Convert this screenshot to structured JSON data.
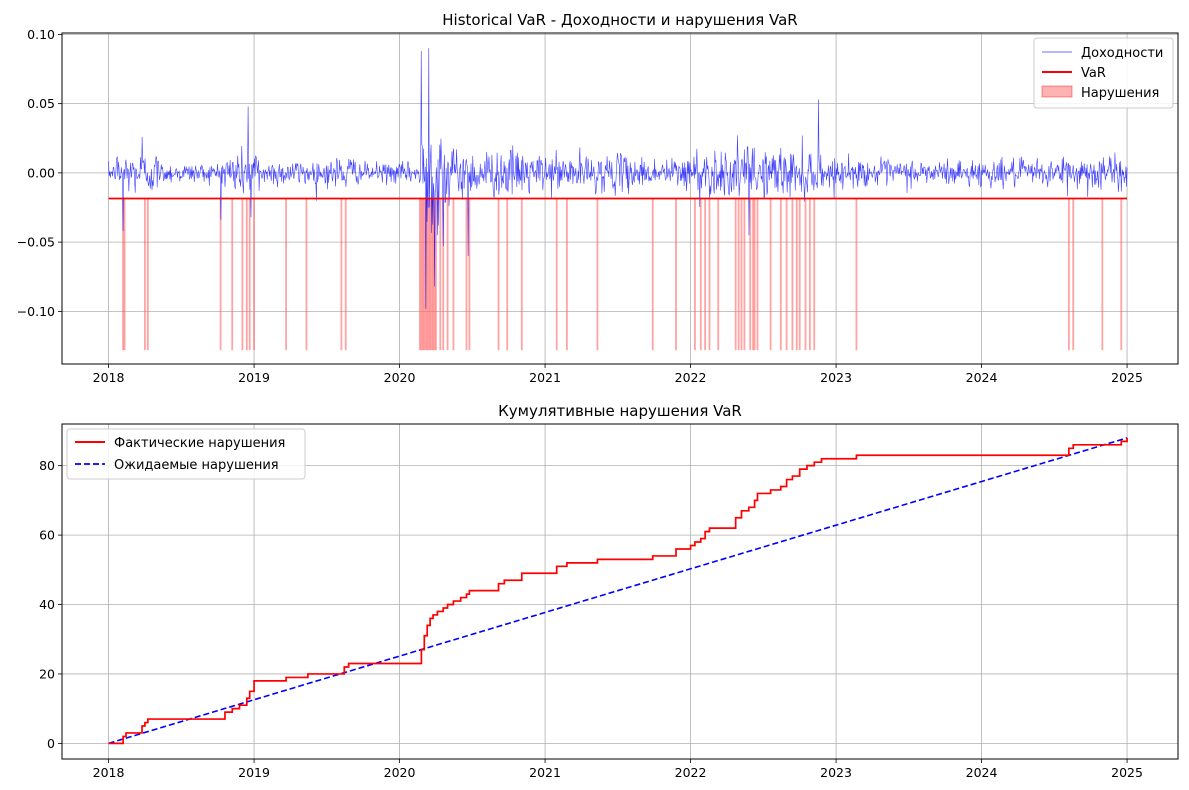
{
  "chart_data": [
    {
      "type": "line",
      "title": "Historical VaR - Доходности и нарушения VaR",
      "xlabel": "",
      "ylabel": "",
      "x_range": [
        2018,
        2025
      ],
      "xlim": [
        2017.68,
        2025.35
      ],
      "ylim": [
        -0.138,
        0.101
      ],
      "x_ticks": [
        2018,
        2019,
        2020,
        2021,
        2022,
        2023,
        2024,
        2025
      ],
      "x_tick_labels": [
        "2018",
        "2019",
        "2020",
        "2021",
        "2022",
        "2023",
        "2024",
        "2025"
      ],
      "y_ticks": [
        -0.1,
        -0.05,
        0.0,
        0.05,
        0.1
      ],
      "y_tick_labels": [
        "−0.10",
        "−0.05",
        "0.00",
        "0.05",
        "0.10"
      ],
      "grid": true,
      "legend_position": "top-right",
      "var_level": -0.0185,
      "violation_floor": -0.128,
      "returns_volatility": {
        "regimes": [
          {
            "from": 2018.0,
            "to": 2018.05,
            "std": 0.005
          },
          {
            "from": 2018.05,
            "to": 2018.35,
            "std": 0.013
          },
          {
            "from": 2018.35,
            "to": 2018.75,
            "std": 0.006
          },
          {
            "from": 2018.75,
            "to": 2019.05,
            "std": 0.014
          },
          {
            "from": 2019.05,
            "to": 2019.55,
            "std": 0.008
          },
          {
            "from": 2019.55,
            "to": 2019.7,
            "std": 0.011
          },
          {
            "from": 2019.7,
            "to": 2020.13,
            "std": 0.006
          },
          {
            "from": 2020.13,
            "to": 2020.35,
            "std": 0.035
          },
          {
            "from": 2020.35,
            "to": 2020.9,
            "std": 0.014
          },
          {
            "from": 2020.9,
            "to": 2021.6,
            "std": 0.011
          },
          {
            "from": 2021.6,
            "to": 2021.95,
            "std": 0.009
          },
          {
            "from": 2021.95,
            "to": 2022.9,
            "std": 0.015
          },
          {
            "from": 2022.9,
            "to": 2024.55,
            "std": 0.008
          },
          {
            "from": 2024.55,
            "to": 2025.0,
            "std": 0.011
          }
        ],
        "spikes": [
          {
            "x": 2018.1,
            "y": -0.042
          },
          {
            "x": 2018.23,
            "y": 0.026
          },
          {
            "x": 2018.96,
            "y": 0.048
          },
          {
            "x": 2018.98,
            "y": -0.032
          },
          {
            "x": 2020.15,
            "y": 0.088
          },
          {
            "x": 2020.18,
            "y": -0.098
          },
          {
            "x": 2020.2,
            "y": 0.09
          },
          {
            "x": 2020.24,
            "y": -0.082
          },
          {
            "x": 2020.47,
            "y": -0.06
          },
          {
            "x": 2022.88,
            "y": 0.053
          },
          {
            "x": 2022.4,
            "y": -0.045
          }
        ]
      },
      "violation_dates": [
        2018.1,
        2018.11,
        2018.25,
        2018.27,
        2018.77,
        2018.85,
        2018.92,
        2018.95,
        2018.97,
        2019.0,
        2019.22,
        2019.36,
        2019.6,
        2019.63,
        2020.14,
        2020.15,
        2020.16,
        2020.17,
        2020.18,
        2020.19,
        2020.2,
        2020.21,
        2020.22,
        2020.23,
        2020.24,
        2020.25,
        2020.28,
        2020.3,
        2020.33,
        2020.37,
        2020.46,
        2020.48,
        2020.68,
        2020.74,
        2020.84,
        2021.08,
        2021.15,
        2021.36,
        2021.74,
        2021.9,
        2022.03,
        2022.07,
        2022.1,
        2022.13,
        2022.19,
        2022.31,
        2022.33,
        2022.35,
        2022.37,
        2022.41,
        2022.43,
        2022.44,
        2022.46,
        2022.55,
        2022.62,
        2022.66,
        2022.7,
        2022.73,
        2022.75,
        2022.79,
        2022.82,
        2022.85,
        2023.14,
        2024.6,
        2024.63,
        2024.83,
        2024.96
      ],
      "series": [
        {
          "name": "Доходности",
          "color": "#0000ff",
          "style": "thin-line"
        },
        {
          "name": "VaR",
          "color": "#ff0000",
          "style": "line"
        },
        {
          "name": "Нарушения",
          "color": "#ff6666",
          "style": "fill"
        }
      ]
    },
    {
      "type": "line",
      "title": "Кумулятивные нарушения VaR",
      "xlabel": "",
      "ylabel": "",
      "xlim": [
        2017.68,
        2025.35
      ],
      "ylim": [
        -4.5,
        92
      ],
      "x_ticks": [
        2018,
        2019,
        2020,
        2021,
        2022,
        2023,
        2024,
        2025
      ],
      "x_tick_labels": [
        "2018",
        "2019",
        "2020",
        "2021",
        "2022",
        "2023",
        "2024",
        "2025"
      ],
      "y_ticks": [
        0,
        20,
        40,
        60,
        80
      ],
      "y_tick_labels": [
        "0",
        "20",
        "40",
        "60",
        "80"
      ],
      "grid": true,
      "legend_position": "top-left",
      "series": [
        {
          "name": "Фактические нарушения",
          "color": "#ff0000",
          "style": "step",
          "x": [
            2018.0,
            2018.08,
            2018.1,
            2018.12,
            2018.2,
            2018.23,
            2018.25,
            2018.27,
            2018.35,
            2018.77,
            2018.8,
            2018.85,
            2018.9,
            2018.95,
            2018.97,
            2019.0,
            2019.2,
            2019.22,
            2019.35,
            2019.37,
            2019.6,
            2019.62,
            2019.65,
            2020.13,
            2020.15,
            2020.17,
            2020.19,
            2020.21,
            2020.23,
            2020.26,
            2020.3,
            2020.33,
            2020.37,
            2020.42,
            2020.46,
            2020.48,
            2020.68,
            2020.72,
            2020.84,
            2021.08,
            2021.15,
            2021.36,
            2021.74,
            2021.9,
            2022.0,
            2022.03,
            2022.07,
            2022.1,
            2022.13,
            2022.19,
            2022.31,
            2022.35,
            2022.4,
            2022.44,
            2022.46,
            2022.55,
            2022.62,
            2022.66,
            2022.7,
            2022.75,
            2022.8,
            2022.85,
            2022.9,
            2023.14,
            2024.55,
            2024.6,
            2024.63,
            2024.83,
            2024.96,
            2025.0
          ],
          "y": [
            0,
            0,
            2,
            3,
            3,
            5,
            6,
            7,
            7,
            7,
            9,
            10,
            11,
            13,
            15,
            18,
            18,
            19,
            19,
            20,
            20,
            22,
            23,
            23,
            27,
            31,
            34,
            36,
            37,
            38,
            39,
            40,
            41,
            42,
            43,
            44,
            46,
            47,
            49,
            51,
            52,
            53,
            54,
            56,
            57,
            58,
            59,
            61,
            62,
            62,
            65,
            67,
            68,
            70,
            72,
            73,
            74,
            76,
            77,
            79,
            80,
            81,
            82,
            83,
            83,
            85,
            86,
            86,
            87,
            88
          ]
        },
        {
          "name": "Ожидаемые нарушения",
          "color": "#0000ff",
          "style": "dashed",
          "x": [
            2018.0,
            2025.0
          ],
          "y": [
            0,
            88
          ]
        }
      ]
    }
  ]
}
